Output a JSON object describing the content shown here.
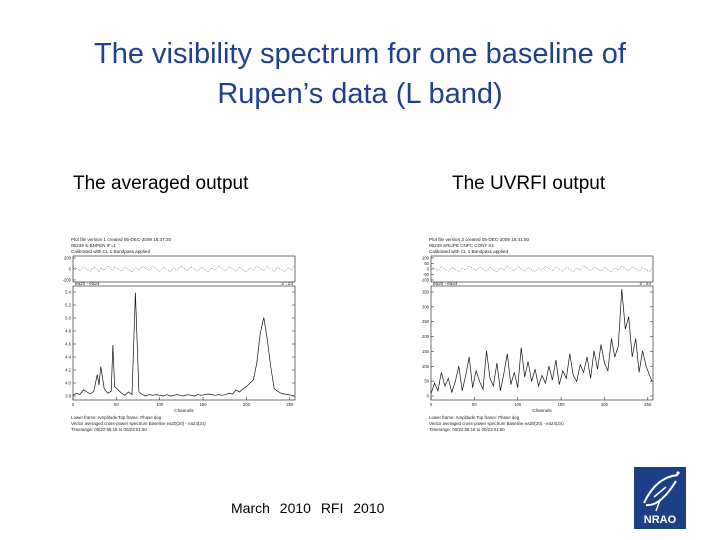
{
  "slide": {
    "title_line1": "The visibility spectrum for one baseline of",
    "title_line2": "Rupen’s data (L band)",
    "left_label": "The averaged  output",
    "right_label": "The UVRFI output",
    "footer": "March 2010   RFI 2010",
    "logo_text": "NRAO"
  },
  "colors": {
    "title": "#1f3f8f",
    "plot_line": "#111111",
    "logo_bg": "#1c3f86"
  },
  "chart_data": [
    {
      "type": "line",
      "header": [
        "Plot file version 1  created 05-DEC-2009 15:37:20",
        "06249  S-BNPEN  IF=1",
        "Calibrated with CL 1  Bandpass applied"
      ],
      "baseline_label": "ea20 - ea24",
      "panel_right_label": "2 : 24",
      "xlabel": "Channels",
      "xticks": [
        "0",
        "50",
        "100",
        "150",
        "200",
        "250"
      ],
      "amp_yticks": [
        "5.4",
        "5.2",
        "5.0",
        "4.8",
        "4.6",
        "4.4",
        "4.2",
        "4.0",
        "3.8"
      ],
      "phase_yticks": [
        "200",
        "0",
        "-200"
      ],
      "footer_lines": [
        "Lower frame: Amplitude  Top frame: Phase deg",
        "Vector averaged cross-power spectrum  Baseline ea20(20) - ea24(24)",
        "Timerange: 00/22:55:16 to 00/23:01:50"
      ],
      "xlim": [
        0,
        256
      ],
      "ylim": [
        3.8,
        5.5
      ],
      "x": [
        0,
        4,
        8,
        12,
        16,
        20,
        24,
        28,
        30,
        32,
        36,
        40,
        44,
        46,
        48,
        52,
        56,
        60,
        64,
        68,
        72,
        76,
        80,
        84,
        88,
        92,
        96,
        100,
        104,
        108,
        112,
        116,
        120,
        124,
        128,
        132,
        136,
        140,
        144,
        148,
        152,
        156,
        160,
        164,
        168,
        172,
        176,
        180,
        184,
        188,
        192,
        196,
        200,
        204,
        208,
        212,
        216,
        220,
        224,
        228,
        232,
        236,
        240,
        244,
        248,
        252,
        255
      ],
      "y": [
        3.87,
        3.9,
        3.88,
        3.95,
        3.92,
        3.89,
        3.93,
        4.18,
        4.02,
        4.3,
        3.97,
        3.9,
        3.93,
        4.62,
        4.0,
        3.95,
        3.9,
        3.87,
        3.92,
        3.88,
        5.4,
        3.92,
        3.88,
        3.86,
        3.88,
        3.87,
        3.88,
        3.87,
        3.86,
        3.88,
        3.86,
        3.87,
        3.88,
        3.87,
        3.86,
        3.88,
        3.87,
        3.86,
        3.88,
        3.87,
        3.88,
        3.89,
        3.88,
        3.87,
        3.88,
        3.87,
        3.88,
        3.9,
        3.89,
        3.95,
        3.92,
        3.97,
        4.0,
        4.05,
        4.1,
        4.35,
        4.8,
        5.03,
        4.7,
        4.3,
        3.97,
        3.93,
        3.9,
        3.89,
        3.88,
        3.87,
        3.86
      ]
    },
    {
      "type": "line",
      "header": [
        "Plot file version 3  created 05-DEC-2009 16:41:50",
        "06249  SRUPE  CNFC  CONT  S1",
        "Calibrated with CL 1  Bandpass applied"
      ],
      "baseline_label": "ea20 - ea24",
      "panel_right_label": "2 : 24",
      "xlabel": "Channels",
      "xticks": [
        "0",
        "50",
        "100",
        "150",
        "200",
        "250"
      ],
      "amp_yticks": [
        "350",
        "300",
        "250",
        "200",
        "150",
        "100",
        "50",
        "0"
      ],
      "phase_yticks": [
        "100",
        "50",
        "0",
        "-50",
        "-100"
      ],
      "footer_lines": [
        "Lower frame: Amplitude  Top frame: Phase deg",
        "Vector averaged cross-power spectrum  Baseline ea20(20) - ea24(24)",
        "Timerange: 00/22:55:16 to 00/23:01:50"
      ],
      "xlim": [
        0,
        256
      ],
      "ylim": [
        0,
        370
      ],
      "x": [
        0,
        4,
        8,
        12,
        16,
        20,
        24,
        28,
        32,
        36,
        40,
        44,
        48,
        52,
        56,
        60,
        64,
        68,
        72,
        76,
        80,
        84,
        88,
        92,
        96,
        100,
        104,
        108,
        112,
        116,
        120,
        124,
        128,
        132,
        136,
        140,
        144,
        148,
        152,
        156,
        160,
        164,
        168,
        172,
        176,
        180,
        184,
        188,
        192,
        196,
        200,
        204,
        208,
        212,
        216,
        220,
        224,
        228,
        232,
        236,
        240,
        244,
        248,
        252,
        255
      ],
      "y": [
        20,
        55,
        30,
        90,
        45,
        70,
        25,
        60,
        110,
        30,
        80,
        140,
        40,
        95,
        60,
        35,
        160,
        70,
        45,
        120,
        30,
        85,
        150,
        50,
        90,
        40,
        170,
        75,
        125,
        60,
        100,
        45,
        80,
        55,
        110,
        65,
        130,
        50,
        95,
        70,
        150,
        80,
        60,
        115,
        90,
        140,
        70,
        160,
        100,
        180,
        120,
        95,
        200,
        140,
        175,
        360,
        230,
        270,
        140,
        200,
        90,
        160,
        110,
        80,
        60
      ]
    }
  ]
}
